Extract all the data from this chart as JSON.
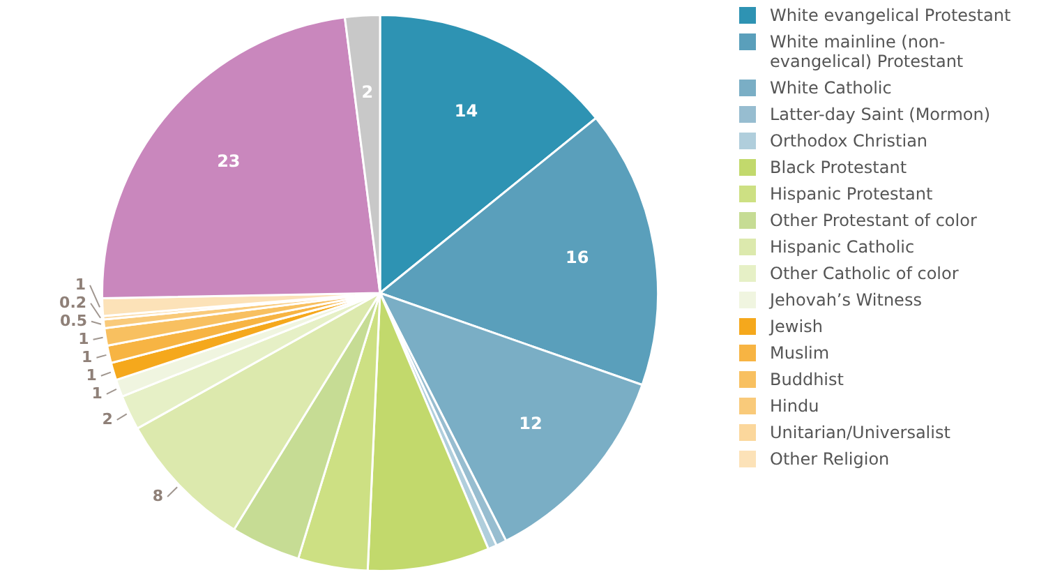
{
  "chart_data": {
    "type": "pie",
    "categories": [
      "White evangelical Protestant",
      "White mainline (non-evangelical) Protestant",
      "White Catholic",
      "Latter-day Saint (Mormon)",
      "Orthodox Christian",
      "Black Protestant",
      "Hispanic Protestant",
      "Other Protestant of color",
      "Hispanic Catholic",
      "Other Catholic of color",
      "Jehovah’s Witness",
      "Jewish",
      "Muslim",
      "Buddhist",
      "Hindu",
      "Unitarian/Universalist",
      "Other Religion",
      null,
      null
    ],
    "values": [
      14,
      16,
      12,
      0.6,
      0.5,
      7,
      4,
      4,
      8,
      2,
      1,
      1,
      1,
      1,
      0.5,
      0.2,
      1,
      23,
      2
    ],
    "value_labels": [
      "14",
      "16",
      "12",
      null,
      null,
      null,
      null,
      null,
      "8",
      "2",
      "1",
      "1",
      "1",
      "1",
      "0.5",
      "0.2",
      "1",
      "23",
      "2"
    ],
    "colors": [
      "#2e93b3",
      "#5a9fbb",
      "#7aaec5",
      "#97bdd0",
      "#b0cedc",
      "#c2d96c",
      "#cde083",
      "#c6dc94",
      "#dce9ad",
      "#e6f0c6",
      "#f0f5e0",
      "#f5a81c",
      "#f7b443",
      "#f8c060",
      "#f9ca7a",
      "#fbd79c",
      "#fce2b8",
      "#c987bd",
      "#c8c8c8"
    ],
    "legend": "right"
  }
}
